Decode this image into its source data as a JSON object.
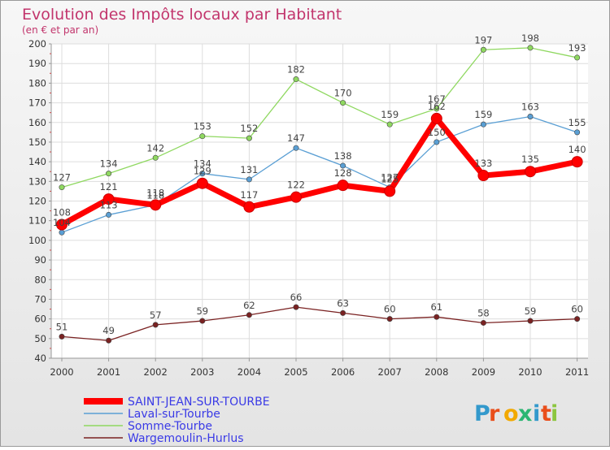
{
  "chart_data": {
    "type": "line",
    "title": "Evolution des Impôts locaux par Habitant",
    "subtitle": "(en € et par an)",
    "xlabel": "",
    "ylabel": "",
    "x": [
      "2000",
      "2001",
      "2002",
      "2003",
      "2004",
      "2005",
      "2006",
      "2007",
      "2008",
      "2009",
      "2010",
      "2011"
    ],
    "ylim": [
      40,
      200
    ],
    "yticks": [
      "40",
      "50",
      "60",
      "70",
      "80",
      "90",
      "100",
      "110",
      "120",
      "130",
      "140",
      "150",
      "160",
      "170",
      "180",
      "190",
      "200"
    ],
    "grid": true,
    "series": [
      {
        "name": "Somme-Tourbe",
        "color": "#8fd860",
        "values": [
          127,
          134,
          142,
          153,
          152,
          182,
          170,
          159,
          167,
          197,
          198,
          193
        ]
      },
      {
        "name": "Laval-sur-Tourbe",
        "color": "#5a9fd4",
        "values": [
          104,
          113,
          118,
          134,
          131,
          147,
          138,
          127,
          150,
          159,
          163,
          155
        ]
      },
      {
        "name": "Wargemoulin-Hurlus",
        "color": "#7a2222",
        "values": [
          51,
          49,
          57,
          59,
          62,
          66,
          63,
          60,
          61,
          58,
          59,
          60
        ]
      },
      {
        "name": "SAINT-JEAN-SUR-TOURBE",
        "color": "#ff0000",
        "values": [
          108,
          121,
          118,
          129,
          117,
          122,
          128,
          125,
          162,
          133,
          135,
          140
        ]
      }
    ],
    "legend": {
      "placement": "bottom-left",
      "order": [
        "SAINT-JEAN-SUR-TOURBE",
        "Laval-sur-Tourbe",
        "Somme-Tourbe",
        "Wargemoulin-Hurlus"
      ]
    }
  },
  "logo": {
    "text": "Proxiti",
    "letter_colors": [
      "#3399cc",
      "#e94e1b",
      "#f2a900",
      "#2bb673",
      "#3399cc",
      "#e94e1b",
      "#8cc63f"
    ]
  }
}
